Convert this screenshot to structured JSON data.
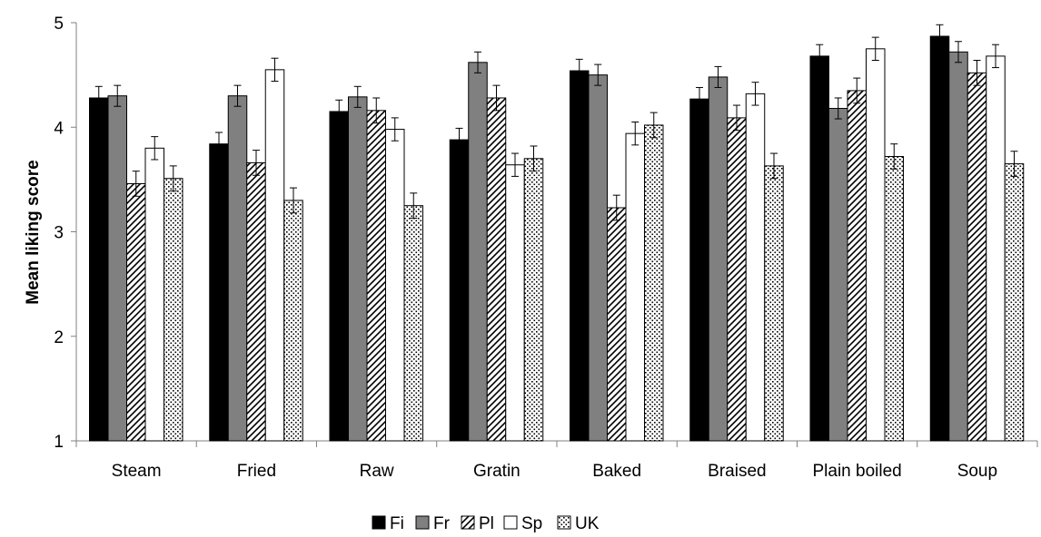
{
  "chart_data": {
    "type": "bar",
    "title": "",
    "xlabel": "",
    "ylabel": "Mean liking score",
    "ylim": [
      1,
      5
    ],
    "yticks": [
      "1",
      "2",
      "3",
      "4",
      "5"
    ],
    "grid": false,
    "legend_position": "bottom",
    "error_bars": true,
    "categories": [
      "Steam",
      "Fried",
      "Raw",
      "Gratin",
      "Baked",
      "Braised",
      "Plain boiled",
      "Soup"
    ],
    "series": [
      {
        "name": "Fi",
        "fill": "black",
        "color": "#000000",
        "values": [
          4.28,
          3.84,
          4.15,
          3.88,
          4.54,
          4.27,
          4.68,
          4.87
        ],
        "errors": [
          0.11,
          0.11,
          0.11,
          0.11,
          0.11,
          0.11,
          0.11,
          0.11
        ]
      },
      {
        "name": "Fr",
        "fill": "gray",
        "color": "#808080",
        "values": [
          4.3,
          4.3,
          4.29,
          4.62,
          4.5,
          4.48,
          4.18,
          4.72
        ],
        "errors": [
          0.1,
          0.1,
          0.1,
          0.1,
          0.1,
          0.1,
          0.1,
          0.1
        ]
      },
      {
        "name": "Pl",
        "fill": "hatch",
        "color": "#000000",
        "values": [
          3.46,
          3.66,
          4.16,
          4.28,
          3.23,
          4.09,
          4.35,
          4.52
        ],
        "errors": [
          0.12,
          0.12,
          0.12,
          0.12,
          0.12,
          0.12,
          0.12,
          0.12
        ]
      },
      {
        "name": "Sp",
        "fill": "white",
        "color": "#ffffff",
        "values": [
          3.8,
          4.55,
          3.98,
          3.64,
          3.94,
          4.32,
          4.75,
          4.68
        ],
        "errors": [
          0.11,
          0.11,
          0.11,
          0.11,
          0.11,
          0.11,
          0.11,
          0.11
        ]
      },
      {
        "name": "UK",
        "fill": "dotted",
        "color": "#000000",
        "values": [
          3.51,
          3.3,
          3.25,
          3.7,
          4.02,
          3.63,
          3.72,
          3.65
        ],
        "errors": [
          0.12,
          0.12,
          0.12,
          0.12,
          0.12,
          0.12,
          0.12,
          0.12
        ]
      }
    ]
  }
}
